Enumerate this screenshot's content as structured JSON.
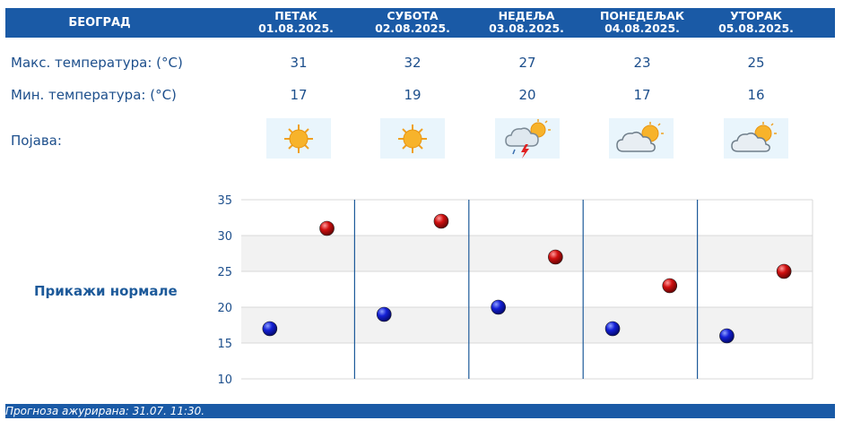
{
  "header": {
    "city": "БЕОГРАД",
    "days": [
      {
        "name": "ПЕТАК",
        "date": "01.08.2025."
      },
      {
        "name": "СУБОТА",
        "date": "02.08.2025."
      },
      {
        "name": "НЕДЕЉА",
        "date": "03.08.2025."
      },
      {
        "name": "ПОНЕДЕЉАК",
        "date": "04.08.2025."
      },
      {
        "name": "УТОРАК",
        "date": "05.08.2025."
      }
    ]
  },
  "rows": {
    "max_label": "Макс. температура: (°C)",
    "min_label": "Мин. температура: (°C)",
    "phen_label": "Појава:",
    "max": [
      "31",
      "32",
      "27",
      "23",
      "25"
    ],
    "min": [
      "17",
      "19",
      "20",
      "17",
      "16"
    ],
    "icons": [
      "sun-icon",
      "sun-icon",
      "thunderstorm-icon",
      "partly-cloudy-icon",
      "partly-cloudy-icon"
    ]
  },
  "show_normals": "Прикажи нормале",
  "footer": {
    "text": "Прогноза ажурирана:  31.07. 11:30."
  },
  "colors": {
    "bar": "#1a5aa6",
    "min_marker": "#0a14c8",
    "max_marker": "#c80a0a",
    "band": "#f2f2f2",
    "grid": "#d8d8d8",
    "day_divider": "#1d5a9a",
    "label": "#1d4f8c"
  },
  "chart_data": {
    "type": "scatter",
    "title": "",
    "xlabel": "",
    "ylabel": "",
    "categories": [
      "01.08.2025.",
      "02.08.2025.",
      "03.08.2025.",
      "04.08.2025.",
      "05.08.2025."
    ],
    "series": [
      {
        "values": [
          17,
          19,
          20,
          17,
          16
        ],
        "color": "#0a14c8"
      },
      {
        "values": [
          31,
          32,
          27,
          23,
          25
        ],
        "color": "#c80a0a"
      }
    ],
    "yticks": [
      "35",
      "30",
      "25",
      "20",
      "15",
      "10"
    ],
    "ylim": [
      10,
      35
    ],
    "grid": true,
    "alternating_bands": true
  }
}
